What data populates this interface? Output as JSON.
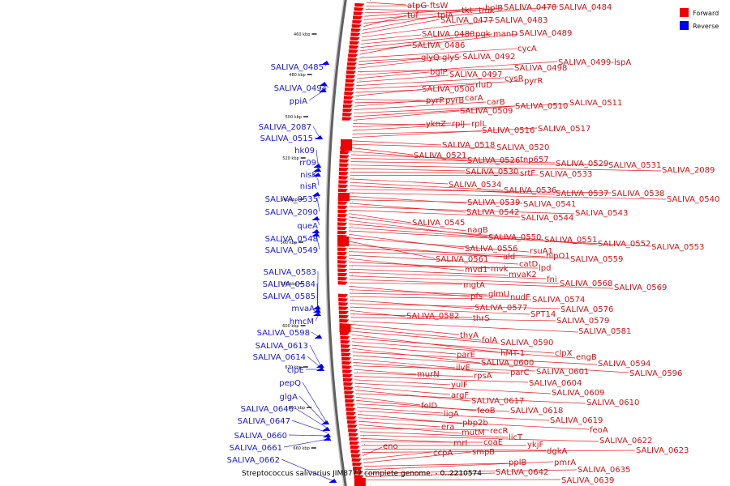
{
  "caption": "Streptococcus salivarius JIM8777 complete genome. - 0..2210574",
  "legend": [
    {
      "label": "Forward",
      "color": "#ee0000"
    },
    {
      "label": "Reverse",
      "color": "#0000ee"
    }
  ],
  "ticks": [
    "460 kbp",
    "480 kbp",
    "500 kbp",
    "520 kbp",
    "540 kbp",
    "560 kbp",
    "580 kbp",
    "600 kbp",
    "620 kbp",
    "640 kbp",
    "660 kbp"
  ],
  "forward_labels": [
    "atpG",
    "ftsW",
    "tkt",
    "tmk",
    "holB",
    "SALIVA_0478",
    "SALIVA_0484",
    "tuf",
    "tpiA",
    "SALIVA_0477",
    "SALIVA_0483",
    "SALIVA_0480",
    "pgk",
    "manD",
    "SALIVA_0489",
    "SALIVA_0486",
    "cycA",
    "glyQ",
    "glyS",
    "SALIVA_0492",
    "SALIVA_0498",
    "SALIVA_0499-lspA",
    "bglP",
    "SALIVA_0497",
    "cysR",
    "pyrR",
    "SALIVA_0500",
    "rluD",
    "pyrP",
    "pyrB",
    "carA",
    "carB",
    "SALIVA_0511",
    "SALIVA_0509",
    "SALIVA_0510",
    "yknZ",
    "rplJ",
    "rplL",
    "SALIVA_0516",
    "SALIVA_0517",
    "SALIVA_0518",
    "SALIVA_0520",
    "SALIVA_0521",
    "SALIVA_0526",
    "tnp657",
    "SALIVA_0529",
    "SALIVA_0531",
    "SALIVA_2089",
    "SALIVA_0530",
    "srtF",
    "SALIVA_0533",
    "SALIVA_0534",
    "SALIVA_0536",
    "SALIVA_0537",
    "SALIVA_0538",
    "SALIVA_0540",
    "SALIVA_0539",
    "SALIVA_0541",
    "SALIVA_0542",
    "SALIVA_0543",
    "SALIVA_0544",
    "SALIVA_0545",
    "nagB",
    "SALIVA_0550",
    "SALIVA_0551",
    "SALIVA_0552",
    "SALIVA_0553",
    "SALIVA_0556",
    "rsuA1",
    "SALIVA_0561",
    "ald",
    "hipO1",
    "SALIVA_0559",
    "catD",
    "mvd1",
    "mvk",
    "lpd",
    "mvaK2",
    "fni",
    "SALIVA_0568",
    "SALIVA_0569",
    "mgtA",
    "pfs",
    "glmU",
    "nudF",
    "SALIVA_0574",
    "SALIVA_0577",
    "SALIVA_0576",
    "SPT14",
    "SALIVA_0582",
    "thrS",
    "SALIVA_0579",
    "SALIVA_0581",
    "thyA",
    "folA",
    "SALIVA_0590",
    "hMT-1",
    "clpX",
    "engB",
    "parE",
    "SALIVA_0600",
    "SALIVA_0594",
    "SALIVA_0596",
    "ilvE",
    "parC",
    "SALIVA_0601",
    "murN",
    "rpsA",
    "SALIVA_0604",
    "yulF",
    "SALIVA_0609",
    "argF",
    "SALIVA_0617",
    "SALIVA_0610",
    "folD",
    "feoB",
    "SALIVA_0618",
    "ligA",
    "SALIVA_0619",
    "pbp2b",
    "feoA",
    "era",
    "mutM",
    "recR",
    "licT",
    "SALIVA_0622",
    "rnrI",
    "coaE",
    "ykjF",
    "dgkA",
    "SALIVA_0623",
    "eno",
    "ccpA",
    "smpB",
    "pplB",
    "pmrA",
    "SALIVA_0635",
    "SALIVA_0642",
    "SALIVA_0639"
  ],
  "reverse_labels": [
    "SALIVA_0485",
    "SALIVA_0494",
    "ppiA",
    "SALIVA_2087",
    "SALIVA_0515",
    "hk09",
    "rr09",
    "nisK",
    "nisR",
    "SALIVA_0535",
    "SALIVA_2090",
    "queA",
    "SALIVA_0548",
    "SALIVA_0549",
    "SALIVA_0583",
    "SALIVA_0584",
    "SALIVA_0585",
    "mvaA",
    "hmcM",
    "SALIVA_0598",
    "SALIVA_0613",
    "SALIVA_0614",
    "clpE",
    "pepQ",
    "glgA",
    "SALIVA_0646",
    "SALIVA_0647",
    "SALIVA_0660",
    "SALIVA_0661",
    "SALIVA_0662"
  ]
}
